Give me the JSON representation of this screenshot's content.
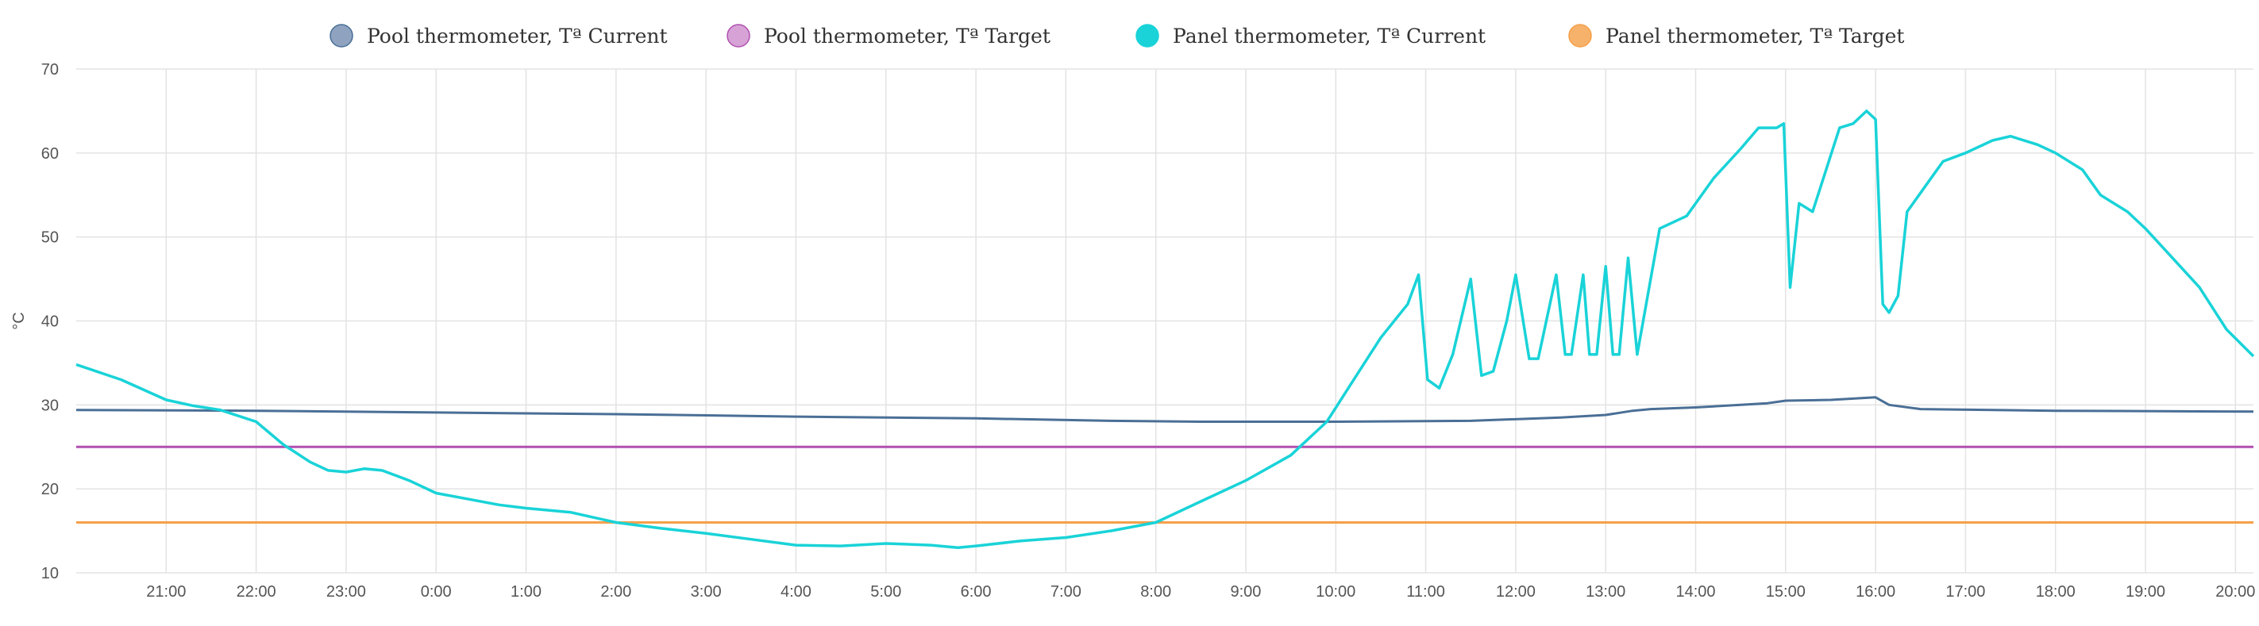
{
  "chart_data": {
    "type": "line",
    "title": "",
    "xlabel": "",
    "ylabel": "°C",
    "ylim": [
      10,
      70
    ],
    "xlim": [
      20.0,
      44.2
    ],
    "grid": true,
    "legend_position": "top",
    "y_ticks": [
      "10",
      "20",
      "30",
      "40",
      "50",
      "60",
      "70"
    ],
    "y_tick_values": [
      10,
      20,
      30,
      40,
      50,
      60,
      70
    ],
    "x_ticks": [
      "21:00",
      "22:00",
      "23:00",
      "0:00",
      "1:00",
      "2:00",
      "3:00",
      "4:00",
      "5:00",
      "6:00",
      "7:00",
      "8:00",
      "9:00",
      "10:00",
      "11:00",
      "12:00",
      "13:00",
      "14:00",
      "15:00",
      "16:00",
      "17:00",
      "18:00",
      "19:00",
      "20:00"
    ],
    "x_tick_values": [
      21,
      22,
      23,
      24,
      25,
      26,
      27,
      28,
      29,
      30,
      31,
      32,
      33,
      34,
      35,
      36,
      37,
      38,
      39,
      40,
      41,
      42,
      43,
      44
    ],
    "series": [
      {
        "name": "Pool thermometer, Tª Current",
        "color": "#4a6f96",
        "marker_color": "#8fa3c0",
        "x": [
          20.0,
          22.0,
          24.0,
          26.0,
          28.0,
          30.0,
          31.5,
          32.5,
          34.0,
          35.5,
          36.5,
          37.0,
          37.3,
          37.5,
          38.0,
          38.5,
          38.8,
          39.0,
          39.5,
          40.0,
          40.15,
          40.5,
          42.0,
          44.2
        ],
        "y": [
          29.4,
          29.3,
          29.1,
          28.9,
          28.6,
          28.4,
          28.1,
          28.0,
          28.0,
          28.1,
          28.5,
          28.8,
          29.3,
          29.5,
          29.7,
          30.0,
          30.2,
          30.5,
          30.6,
          30.9,
          30.0,
          29.5,
          29.3,
          29.2
        ]
      },
      {
        "name": "Pool thermometer, Tª Target",
        "color": "#b14fb0",
        "marker_color": "#d7a3d6",
        "x": [
          20.0,
          44.2
        ],
        "y": [
          25,
          25
        ]
      },
      {
        "name": "Panel thermometer, Tª Current",
        "color": "#19d3d8",
        "marker_color": "#19d3d8",
        "x": [
          20.0,
          20.5,
          21.0,
          21.3,
          21.6,
          22.0,
          22.3,
          22.6,
          22.8,
          23.0,
          23.2,
          23.4,
          23.7,
          24.0,
          24.3,
          24.7,
          25.0,
          25.5,
          26.0,
          26.5,
          27.0,
          27.5,
          28.0,
          28.5,
          29.0,
          29.5,
          29.8,
          30.0,
          30.5,
          31.0,
          31.5,
          32.0,
          32.5,
          33.0,
          33.5,
          33.9,
          34.2,
          34.5,
          34.8,
          34.92,
          35.02,
          35.15,
          35.3,
          35.5,
          35.62,
          35.75,
          35.9,
          36.0,
          36.15,
          36.25,
          36.3,
          36.45,
          36.55,
          36.62,
          36.75,
          36.82,
          36.9,
          37.0,
          37.08,
          37.15,
          37.25,
          37.35,
          37.6,
          37.9,
          38.2,
          38.5,
          38.7,
          38.9,
          38.98,
          39.05,
          39.15,
          39.3,
          39.45,
          39.6,
          39.75,
          39.9,
          40.0,
          40.08,
          40.15,
          40.25,
          40.35,
          40.55,
          40.75,
          41.0,
          41.3,
          41.5,
          41.8,
          42.0,
          42.3,
          42.5,
          42.8,
          43.0,
          43.3,
          43.6,
          43.9,
          44.2
        ],
        "y": [
          34.8,
          33.0,
          30.6,
          29.9,
          29.4,
          28.0,
          25.3,
          23.2,
          22.2,
          22.0,
          22.4,
          22.2,
          21.0,
          19.5,
          18.9,
          18.1,
          17.7,
          17.2,
          16.0,
          15.3,
          14.7,
          14.0,
          13.3,
          13.2,
          13.5,
          13.3,
          13.0,
          13.2,
          13.8,
          14.2,
          15.0,
          16.0,
          18.5,
          21.0,
          24.0,
          28.0,
          33.0,
          38.0,
          42.0,
          45.5,
          33.0,
          32.0,
          36.0,
          45.0,
          33.5,
          34.0,
          40.0,
          45.5,
          35.5,
          35.5,
          38.0,
          45.5,
          36.0,
          36.0,
          45.5,
          36.0,
          36.0,
          46.5,
          36.0,
          36.0,
          47.5,
          36.0,
          51.0,
          52.5,
          57.0,
          60.5,
          63.0,
          63.0,
          63.5,
          44.0,
          54.0,
          53.0,
          58.0,
          63.0,
          63.5,
          65.0,
          64.0,
          42.0,
          41.0,
          43.0,
          53.0,
          56.0,
          59.0,
          60.0,
          61.5,
          62.0,
          61.0,
          60.0,
          58.0,
          55.0,
          53.0,
          51.0,
          47.5,
          44.0,
          39.0,
          35.8
        ]
      },
      {
        "name": "Panel thermometer, Tª Target",
        "color": "#f5a048",
        "marker_color": "#f6b26b",
        "x": [
          20.0,
          44.2
        ],
        "y": [
          16,
          16
        ]
      }
    ]
  }
}
